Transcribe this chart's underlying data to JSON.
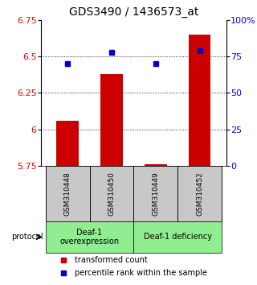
{
  "title": "GDS3490 / 1436573_at",
  "samples": [
    "GSM310448",
    "GSM310450",
    "GSM310449",
    "GSM310452"
  ],
  "red_values": [
    6.06,
    6.38,
    5.76,
    6.65
  ],
  "blue_values": [
    70,
    78,
    70,
    79
  ],
  "ylim_left": [
    5.75,
    6.75
  ],
  "ylim_right": [
    0,
    100
  ],
  "yticks_left": [
    5.75,
    6.0,
    6.25,
    6.5,
    6.75
  ],
  "yticks_right": [
    0,
    25,
    50,
    75,
    100
  ],
  "ytick_labels_left": [
    "5.75",
    "6",
    "6.25",
    "6.5",
    "6.75"
  ],
  "ytick_labels_right": [
    "0",
    "25",
    "50",
    "75",
    "100%"
  ],
  "groups": [
    {
      "label": "Deaf-1\noverexpression",
      "samples": [
        0,
        1
      ],
      "color": "#90EE90"
    },
    {
      "label": "Deaf-1 deficiency",
      "samples": [
        2,
        3
      ],
      "color": "#90EE90"
    }
  ],
  "group_colors": [
    "#c8c8c8",
    "#c8c8c8",
    "#c8c8c8",
    "#c8c8c8"
  ],
  "bar_color": "#cc0000",
  "dot_color": "#0000cc",
  "protocol_label": "protocol",
  "legend_red": "transformed count",
  "legend_blue": "percentile rank within the sample",
  "bar_width": 0.5,
  "base_value": 5.75
}
